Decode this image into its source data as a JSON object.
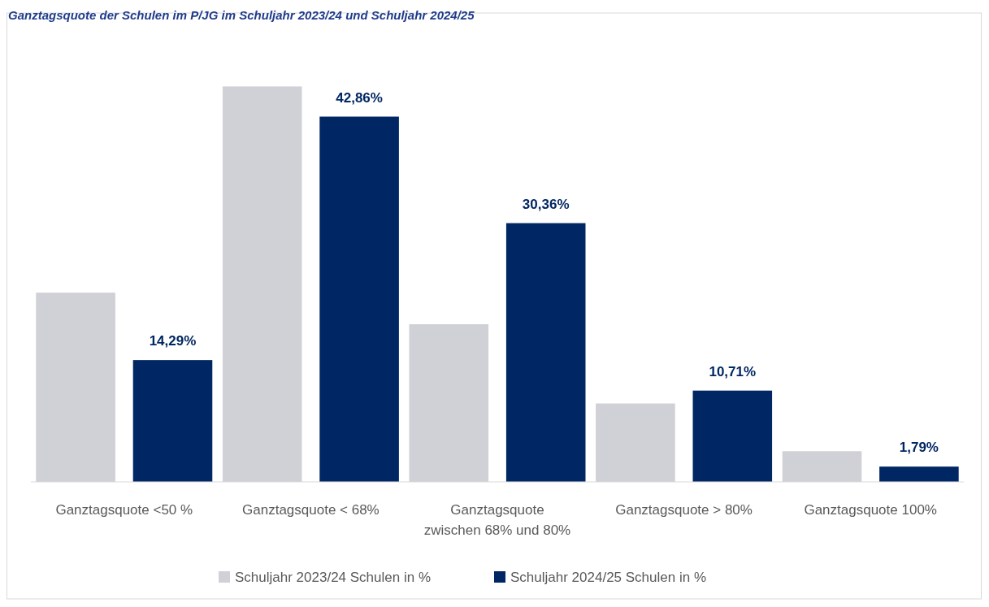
{
  "chart_data": {
    "type": "bar",
    "title": "Ganztagsquote der Schulen im P/JG im Schuljahr 2023/24 und Schuljahr 2024/25",
    "categories": [
      "Ganztagsquote <50 %",
      "Ganztagsquote < 68%",
      "Ganztagsquote zwischen 68% und 80%",
      "Ganztagsquote > 80%",
      "Ganztagsquote 100%"
    ],
    "series": [
      {
        "name": "Schuljahr 2023/24 Schulen in %",
        "color": "#d0d1d6",
        "values": [
          22.2,
          46.4,
          18.5,
          9.2,
          3.6
        ]
      },
      {
        "name": "Schuljahr 2024/25 Schulen in %",
        "color": "#002663",
        "values": [
          14.29,
          42.86,
          30.36,
          10.71,
          1.79
        ],
        "value_labels": [
          "14,29%",
          "42,86%",
          "30,36%",
          "10,71%",
          "1,79%"
        ]
      }
    ],
    "legend": "bottom",
    "grid": false
  }
}
